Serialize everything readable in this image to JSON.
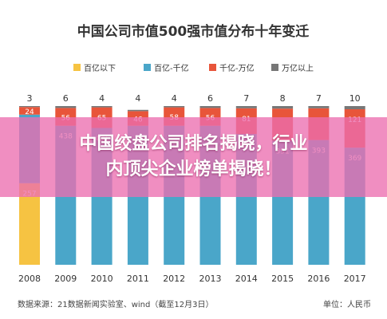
{
  "chart_data": {
    "type": "bar",
    "stacked": true,
    "title": "中国公司市值500强市值分布十年变迁",
    "categories": [
      "2008",
      "2009",
      "2010",
      "2011",
      "2012",
      "2013",
      "2014",
      "2015",
      "2016",
      "2017"
    ],
    "series": [
      {
        "name": "百亿以下",
        "color": "#f6c342",
        "values": [
          257,
          0,
          0,
          0,
          0,
          0,
          0,
          0,
          0,
          0
        ],
        "labels": [
          "257",
          "",
          "",
          "",
          "",
          "",
          "",
          "",
          "",
          ""
        ]
      },
      {
        "name": "百亿-千亿",
        "color": "#4aa6c9",
        "values": [
          216,
          438,
          431,
          438,
          438,
          438,
          412,
          391,
          393,
          369
        ],
        "labels": [
          "",
          "438",
          "431",
          "",
          "",
          "",
          "412",
          "391",
          "393",
          "369"
        ]
      },
      {
        "name": "千亿-万亿",
        "color": "#e8553a",
        "values": [
          24,
          56,
          65,
          46,
          58,
          56,
          81,
          101,
          100,
          121
        ],
        "labels": [
          "24",
          "56",
          "65",
          "46",
          "58",
          "56",
          "81",
          "",
          "",
          "121"
        ]
      },
      {
        "name": "万亿以上",
        "color": "#777777",
        "values": [
          3,
          6,
          4,
          4,
          4,
          6,
          7,
          8,
          7,
          10
        ],
        "labels": [
          "",
          "",
          "",
          "",
          "",
          "",
          "",
          "",
          "",
          ""
        ]
      }
    ],
    "top_labels": [
      "3",
      "6",
      "4",
      "4",
      "4",
      "6",
      "7",
      "8",
      "7",
      "10"
    ],
    "ylim": [
      0,
      500
    ],
    "legend": "top",
    "grid": false
  },
  "footer": {
    "source": "数据来源：21数据新闻实验室、wind（截至12月3日）",
    "unit": "单位：人民币"
  },
  "banner": {
    "line1": "中国绞盘公司排名揭晓，行业",
    "line2": "内顶尖企业榜单揭晓！"
  }
}
